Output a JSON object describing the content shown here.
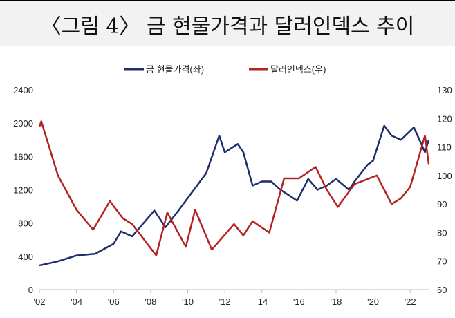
{
  "title": "〈그림 4〉 금 현물가격과 달러인덱스 추이",
  "chart_data": {
    "type": "line",
    "title": "〈그림 4〉 금 현물가격과 달러인덱스 추이",
    "legend_position": "top",
    "grid": false,
    "x_ticks": [
      {
        "v": 2002,
        "label": "'02"
      },
      {
        "v": 2004,
        "label": "'04"
      },
      {
        "v": 2006,
        "label": "'06"
      },
      {
        "v": 2008,
        "label": "'08"
      },
      {
        "v": 2010,
        "label": "'10"
      },
      {
        "v": 2012,
        "label": "'12"
      },
      {
        "v": 2014,
        "label": "'14"
      },
      {
        "v": 2016,
        "label": "'16"
      },
      {
        "v": 2018,
        "label": "'18"
      },
      {
        "v": 2020,
        "label": "'20"
      },
      {
        "v": 2022,
        "label": "'22"
      }
    ],
    "xlim": [
      2002,
      2023
    ],
    "y_left": {
      "lim": [
        0,
        2400
      ],
      "ticks": [
        "0",
        "400",
        "800",
        "1200",
        "1600",
        "2000",
        "2400"
      ]
    },
    "y_right": {
      "lim": [
        60,
        130
      ],
      "ticks": [
        "60",
        "70",
        "80",
        "90",
        "100",
        "110",
        "120",
        "130"
      ]
    },
    "series": [
      {
        "name": "금 현물가격(좌)",
        "axis": "left",
        "color": "#1f2d6b",
        "x": [
          2002,
          2003,
          2004,
          2005,
          2006,
          2006.4,
          2007,
          2008.2,
          2008.8,
          2009.5,
          2010,
          2010.5,
          2011,
          2011.7,
          2012,
          2012.7,
          2013,
          2013.5,
          2014,
          2014.5,
          2015,
          2015.9,
          2016.5,
          2017,
          2017.5,
          2018,
          2018.7,
          2019,
          2019.7,
          2020,
          2020.6,
          2021,
          2021.5,
          2022.2,
          2022.8,
          2023
        ],
        "y": [
          290,
          340,
          410,
          430,
          550,
          700,
          640,
          950,
          750,
          950,
          1100,
          1250,
          1400,
          1850,
          1650,
          1750,
          1650,
          1250,
          1300,
          1300,
          1200,
          1070,
          1330,
          1200,
          1250,
          1330,
          1200,
          1300,
          1500,
          1550,
          1970,
          1850,
          1800,
          1950,
          1650,
          1800
        ]
      },
      {
        "name": "달러인덱스(우)",
        "axis": "right",
        "color": "#b22222",
        "x": [
          2002,
          2002.1,
          2003,
          2004,
          2004.9,
          2005.8,
          2006.5,
          2007,
          2008.3,
          2008.9,
          2009.9,
          2010.4,
          2011.3,
          2012.5,
          2013,
          2013.5,
          2014.4,
          2015.2,
          2016,
          2016.9,
          2017.5,
          2018.1,
          2019,
          2020.2,
          2021,
          2021.5,
          2022,
          2022.8,
          2023
        ],
        "y": [
          117,
          119,
          100,
          88,
          81,
          91,
          85,
          83,
          72,
          87,
          75,
          88,
          74,
          83,
          79,
          84,
          80,
          99,
          99,
          103,
          95,
          89,
          97,
          100,
          90,
          92,
          96,
          114,
          104
        ]
      }
    ]
  }
}
